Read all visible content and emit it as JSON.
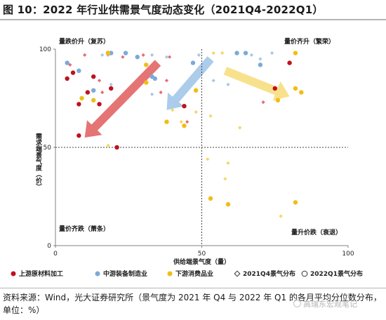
{
  "title": "图 10：2022 年行业供需景气度动态变化（2021Q4-2022Q1）",
  "source": "资料来源：Wind，光大证券研究所（景气度为 2021 年 Q4 与 2022 年 Q1 的各月平均分位数分布，单位：%）",
  "watermark": "高瑞东宏观笔记",
  "colors": {
    "upstream": "#c0111f",
    "midstream": "#7baad8",
    "downstream": "#f2bd14",
    "upstream_light": "#e46d76",
    "midstream_light": "#a9c7e6",
    "downstream_light": "#f6d65e",
    "arrow_red": "#e46d6d",
    "arrow_blue": "#a6c9ea",
    "arrow_yellow": "#f8df86",
    "axis": "#808080"
  },
  "chart_data": {
    "type": "scatter",
    "title": "",
    "xlabel": "供给端景气度（量）",
    "ylabel": "需求端景气度（价）",
    "xlim": [
      0,
      100
    ],
    "ylim": [
      0,
      100
    ],
    "xticks": [
      "0",
      "50",
      "100"
    ],
    "yticks": [
      "0",
      "50",
      "100"
    ],
    "reference_lines": {
      "x": 50,
      "y": 50
    },
    "grid": false,
    "legend_position": "bottom",
    "quadrant_labels": {
      "top_left": "量跌价升（复苏）",
      "top_right": "量价齐升（繁荣）",
      "bottom_left": "量价齐跌（萧条）",
      "bottom_right": "量升价跌（衰退）"
    },
    "legend": [
      {
        "name": "上游原材料加工",
        "symbol": "dot",
        "color_key": "upstream"
      },
      {
        "name": "中游装备制造业",
        "symbol": "dot",
        "color_key": "midstream"
      },
      {
        "name": "下游消费品业",
        "symbol": "dot",
        "color_key": "downstream"
      },
      {
        "name": "2021Q4景气分布",
        "symbol": "diamond-outline"
      },
      {
        "name": "2022Q1景气分布",
        "symbol": "circle-outline"
      }
    ],
    "series": [
      {
        "name": "上游原材料加工",
        "period": "2021Q4",
        "color_key": "upstream_light",
        "points": [
          [
            5,
            92
          ],
          [
            10,
            97
          ],
          [
            15,
            84
          ],
          [
            16,
            78
          ],
          [
            18,
            97
          ],
          [
            23,
            96
          ],
          [
            30,
            97
          ],
          [
            36,
            78
          ],
          [
            38,
            84
          ],
          [
            39,
            96
          ],
          [
            45,
            63
          ],
          [
            71,
            73
          ]
        ]
      },
      {
        "name": "中游装备制造业",
        "period": "2021Q4",
        "color_key": "midstream_light",
        "points": [
          [
            16,
            97
          ],
          [
            18,
            97
          ],
          [
            19,
            82
          ],
          [
            33,
            97
          ],
          [
            33,
            77
          ],
          [
            38,
            96
          ],
          [
            49,
            97
          ],
          [
            54,
            84
          ],
          [
            59,
            82
          ],
          [
            67,
            97
          ],
          [
            70,
            95
          ],
          [
            74,
            98
          ]
        ]
      },
      {
        "name": "下游消费品业",
        "period": "2021Q4",
        "color_key": "downstream_light",
        "points": [
          [
            18,
            51
          ],
          [
            40,
            69
          ],
          [
            43,
            63
          ],
          [
            48,
            68
          ],
          [
            52,
            44
          ],
          [
            53,
            66
          ],
          [
            54,
            98
          ],
          [
            57,
            98
          ],
          [
            62,
            98
          ],
          [
            58,
            34
          ],
          [
            59,
            42
          ],
          [
            63,
            60
          ],
          [
            77,
            15
          ]
        ]
      },
      {
        "name": "上游原材料加工",
        "period": "2022Q1",
        "color_key": "upstream",
        "points": [
          [
            4,
            85
          ],
          [
            6,
            88
          ],
          [
            8,
            72
          ],
          [
            8,
            56
          ],
          [
            11,
            78
          ],
          [
            13,
            86
          ],
          [
            15,
            72
          ],
          [
            18,
            98
          ],
          [
            19,
            80
          ],
          [
            21,
            50
          ],
          [
            44,
            71
          ],
          [
            75,
            80
          ],
          [
            80,
            93
          ]
        ]
      },
      {
        "name": "中游装备制造业",
        "period": "2022Q1",
        "color_key": "midstream",
        "points": [
          [
            4,
            93
          ],
          [
            8,
            89
          ],
          [
            13,
            79
          ],
          [
            19,
            98
          ],
          [
            24,
            98
          ],
          [
            28,
            96
          ],
          [
            33,
            86
          ],
          [
            34,
            85
          ],
          [
            47,
            93
          ],
          [
            62,
            98
          ],
          [
            65,
            98
          ],
          [
            70,
            92
          ]
        ]
      },
      {
        "name": "下游消费品业",
        "period": "2022Q1",
        "color_key": "downstream",
        "points": [
          [
            9,
            75
          ],
          [
            13,
            74
          ],
          [
            18,
            98
          ],
          [
            31,
            92
          ],
          [
            31,
            83
          ],
          [
            38,
            63
          ],
          [
            44,
            61
          ],
          [
            48,
            79
          ],
          [
            53,
            24
          ],
          [
            59,
            21
          ],
          [
            76,
            74
          ],
          [
            82,
            22
          ],
          [
            82,
            98
          ],
          [
            84,
            78
          ],
          [
            82,
            80
          ]
        ]
      }
    ],
    "arrows": [
      {
        "color_key": "arrow_red",
        "from": [
          35,
          93
        ],
        "to": [
          10,
          55
        ]
      },
      {
        "color_key": "arrow_blue",
        "from": [
          53,
          95
        ],
        "to": [
          38,
          69
        ]
      },
      {
        "color_key": "arrow_yellow",
        "from": [
          58,
          89
        ],
        "to": [
          80,
          76
        ]
      }
    ]
  }
}
